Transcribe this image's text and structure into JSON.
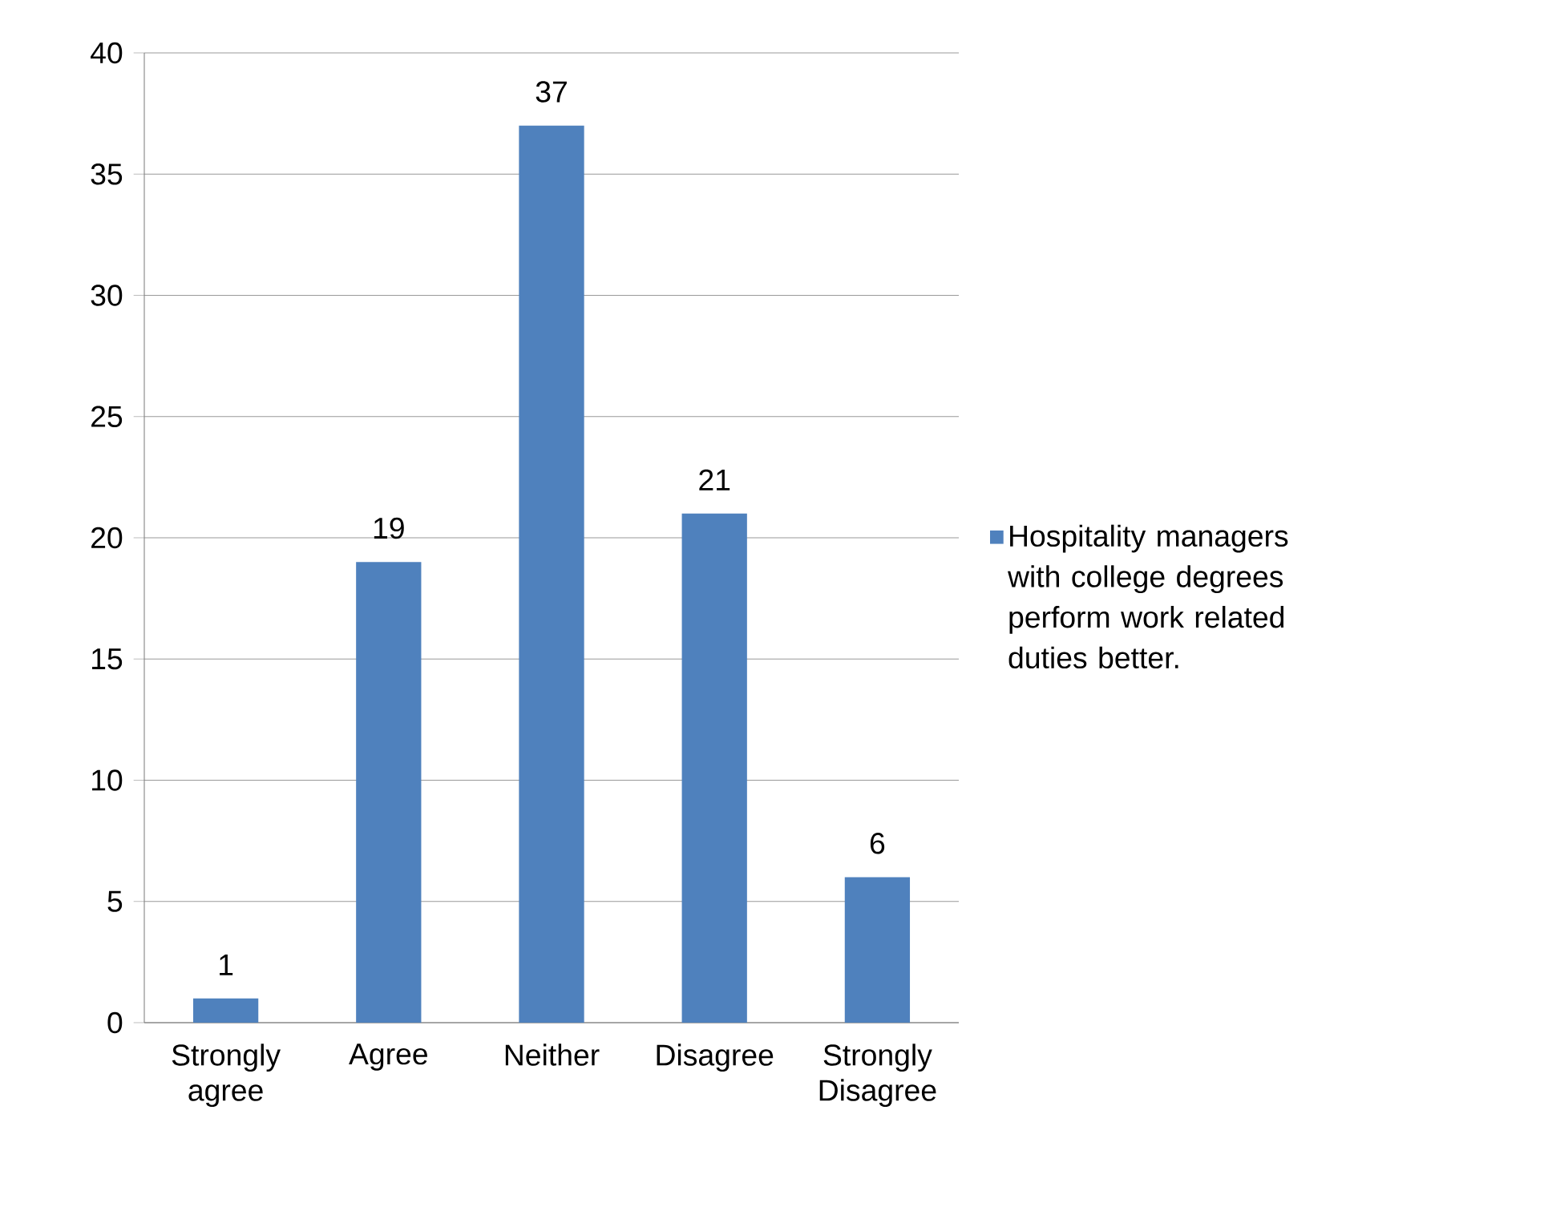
{
  "chart_data": {
    "type": "bar",
    "categories": [
      "Strongly agree",
      "Agree",
      "Neither",
      "Disagree",
      "Strongly Disagree"
    ],
    "series": [
      {
        "name": "Hospitality managers with college degrees perform work related duties better.",
        "color": "#4f81bd",
        "values": [
          1,
          19,
          37,
          21,
          6
        ]
      }
    ],
    "ylim": [
      0,
      40
    ],
    "yticks": [
      0,
      5,
      10,
      15,
      20,
      25,
      30,
      35,
      40
    ],
    "grid": "y",
    "legend": "right",
    "data_labels": true
  }
}
